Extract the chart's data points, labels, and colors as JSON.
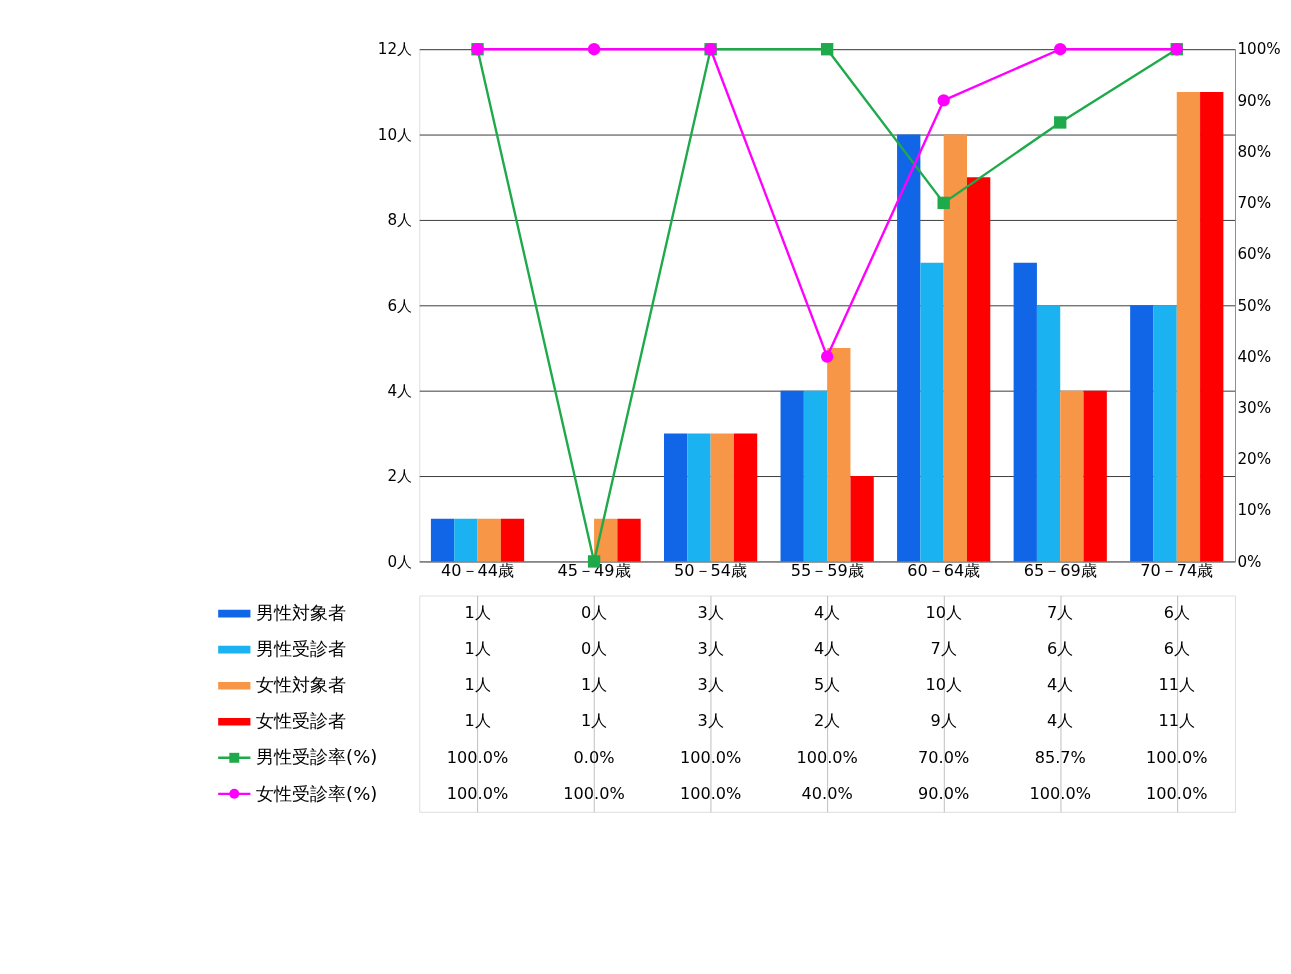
{
  "chart_data": {
    "type": "bar",
    "categories": [
      "40－44歳",
      "45－49歳",
      "50－54歳",
      "55－59歳",
      "60－64歳",
      "65－69歳",
      "70－74歳"
    ],
    "series": [
      {
        "name": "男性対象者",
        "color": "#1166e8",
        "values": [
          1,
          0,
          3,
          4,
          10,
          7,
          6
        ],
        "value_labels": [
          "1人",
          "0人",
          "3人",
          "4人",
          "10人",
          "7人",
          "6人"
        ]
      },
      {
        "name": "男性受診者",
        "color": "#1ab2f0",
        "values": [
          1,
          0,
          3,
          4,
          7,
          6,
          6
        ],
        "value_labels": [
          "1人",
          "0人",
          "3人",
          "4人",
          "7人",
          "6人",
          "6人"
        ]
      },
      {
        "name": "女性対象者",
        "color": "#f79646",
        "values": [
          1,
          1,
          3,
          5,
          10,
          4,
          11
        ],
        "value_labels": [
          "1人",
          "1人",
          "3人",
          "5人",
          "10人",
          "4人",
          "11人"
        ]
      },
      {
        "name": "女性受診者",
        "color": "#ff0000",
        "values": [
          1,
          1,
          3,
          2,
          9,
          4,
          11
        ],
        "value_labels": [
          "1人",
          "1人",
          "3人",
          "2人",
          "9人",
          "4人",
          "11人"
        ]
      },
      {
        "name": "男性受診率(%)",
        "type": "line",
        "axis": "y2",
        "marker": "square",
        "color": "#1eaa4b",
        "values": [
          100,
          0,
          100,
          100,
          70,
          85.7,
          100
        ],
        "value_labels": [
          "100.0%",
          "0.0%",
          "100.0%",
          "100.0%",
          "70.0%",
          "85.7%",
          "100.0%"
        ]
      },
      {
        "name": "女性受診率(%)",
        "type": "line",
        "axis": "y2",
        "marker": "circle",
        "color": "#ff00ff",
        "values": [
          100,
          100,
          100,
          40,
          90,
          100,
          100
        ],
        "value_labels": [
          "100.0%",
          "100.0%",
          "100.0%",
          "40.0%",
          "90.0%",
          "100.0%",
          "100.0%"
        ]
      }
    ],
    "ylim": [
      0,
      12
    ],
    "yticks": [
      {
        "value": 0,
        "label": "0人"
      },
      {
        "value": 2,
        "label": "2人"
      },
      {
        "value": 4,
        "label": "4人"
      },
      {
        "value": 6,
        "label": "6人"
      },
      {
        "value": 8,
        "label": "8人"
      },
      {
        "value": 10,
        "label": "10人"
      },
      {
        "value": 12,
        "label": "12人"
      }
    ],
    "y2lim": [
      0,
      100
    ],
    "y2ticks": [
      {
        "value": 0,
        "label": "0%"
      },
      {
        "value": 10,
        "label": "10%"
      },
      {
        "value": 20,
        "label": "20%"
      },
      {
        "value": 30,
        "label": "30%"
      },
      {
        "value": 40,
        "label": "40%"
      },
      {
        "value": 50,
        "label": "50%"
      },
      {
        "value": 60,
        "label": "60%"
      },
      {
        "value": 70,
        "label": "70%"
      },
      {
        "value": 80,
        "label": "80%"
      },
      {
        "value": 90,
        "label": "90%"
      },
      {
        "value": 100,
        "label": "100%"
      }
    ],
    "grid": "y",
    "legend": "bottom"
  }
}
